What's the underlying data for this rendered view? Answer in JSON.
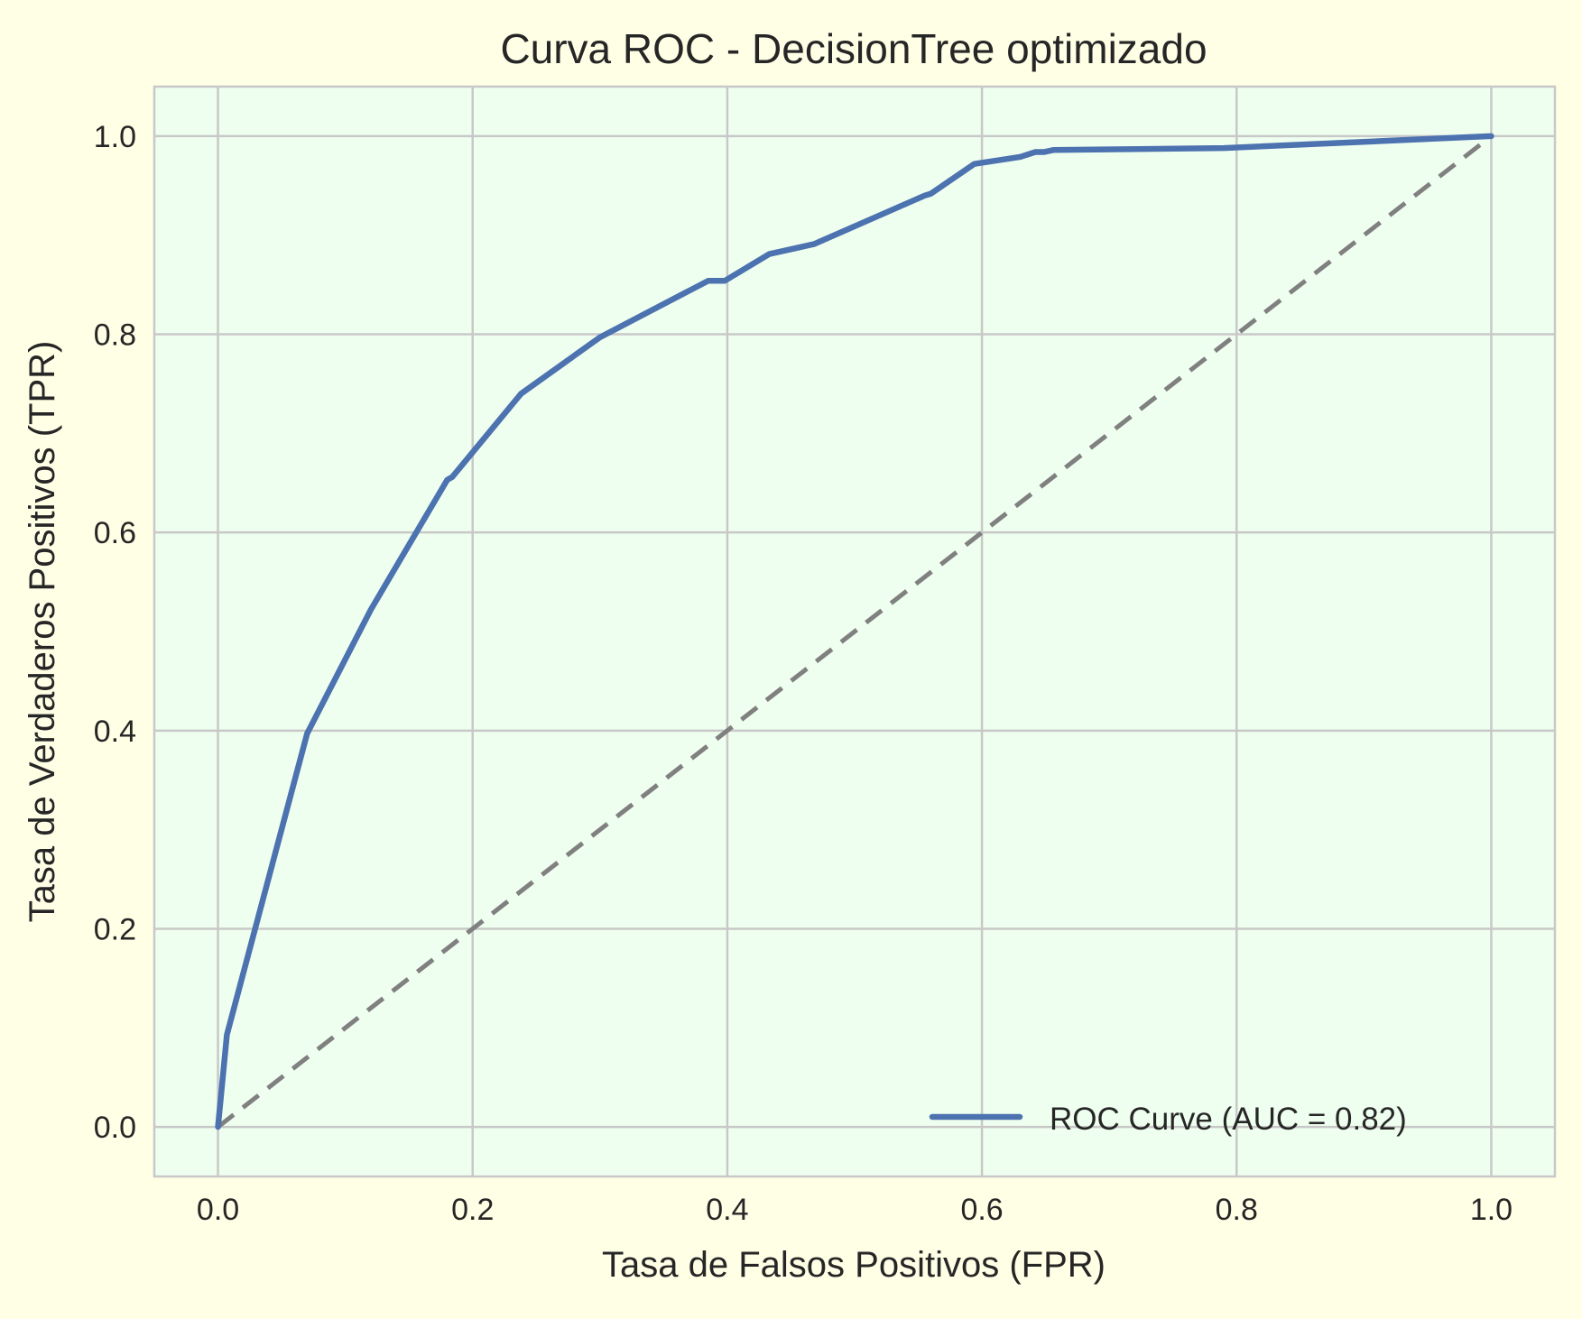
{
  "chart_data": {
    "type": "line",
    "title": "Curva ROC - DecisionTree optimizado",
    "xlabel": "Tasa de Falsos Positivos (FPR)",
    "ylabel": "Tasa de Verdaderos Positivos (TPR)",
    "xlim": [
      -0.05,
      1.05
    ],
    "ylim": [
      -0.05,
      1.05
    ],
    "xticks": [
      0.0,
      0.2,
      0.4,
      0.6,
      0.8,
      1.0
    ],
    "yticks": [
      0.0,
      0.2,
      0.4,
      0.6,
      0.8,
      1.0
    ],
    "xtick_labels": [
      "0.0",
      "0.2",
      "0.4",
      "0.6",
      "0.8",
      "1.0"
    ],
    "ytick_labels": [
      "0.0",
      "0.2",
      "0.4",
      "0.6",
      "0.8",
      "1.0"
    ],
    "grid": true,
    "legend_position": "bottom-right",
    "series": [
      {
        "name": "ROC Curve (AUC = 0.82)",
        "color": "#4c72b0",
        "style": "solid",
        "x": [
          0.0,
          0.007,
          0.07,
          0.12,
          0.18,
          0.184,
          0.238,
          0.3,
          0.385,
          0.398,
          0.433,
          0.468,
          0.555,
          0.56,
          0.594,
          0.63,
          0.642,
          0.649,
          0.656,
          0.79,
          1.0
        ],
        "y": [
          0.0,
          0.093,
          0.397,
          0.522,
          0.653,
          0.656,
          0.74,
          0.797,
          0.854,
          0.854,
          0.881,
          0.891,
          0.94,
          0.942,
          0.972,
          0.979,
          0.984,
          0.984,
          0.986,
          0.988,
          1.0
        ]
      },
      {
        "name": "",
        "color": "#808080",
        "style": "dashed",
        "x": [
          0.0,
          1.0
        ],
        "y": [
          0.0,
          1.0
        ]
      }
    ]
  }
}
